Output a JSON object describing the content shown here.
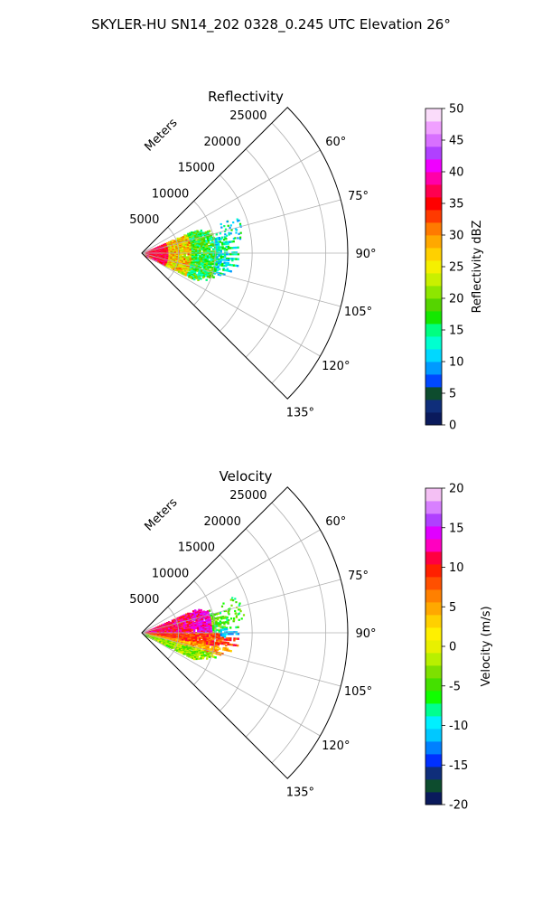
{
  "figure": {
    "suptitle": "SKYLER-HU  SN14_202  0328_0.245 UTC Elevation 26°"
  },
  "chart_data": [
    {
      "type": "heatmap",
      "projection": "polar-sector",
      "title": "Reflectivity",
      "range_label": "Meters",
      "range_ticks": [
        5000,
        10000,
        15000,
        20000,
        25000
      ],
      "range_max_m": 28000,
      "azimuth_range_deg": [
        45,
        135
      ],
      "angle_ticks": [
        "60°",
        "75°",
        "90°",
        "105°",
        "120°",
        "135°"
      ],
      "angle_tick_values": [
        60,
        75,
        90,
        105,
        120,
        135
      ],
      "grid": true,
      "colorbar": {
        "label": "Reflectivity dBZ",
        "min": 0,
        "max": 50,
        "ticks": [
          0,
          5,
          10,
          15,
          20,
          25,
          30,
          35,
          40,
          45,
          50
        ],
        "colors": [
          "#0a1a5c",
          "#0f2e7a",
          "#0d4c2e",
          "#0048ff",
          "#009aff",
          "#00d8ff",
          "#00ffd0",
          "#00ff80",
          "#14e800",
          "#55d400",
          "#8ee600",
          "#c9f000",
          "#f5f000",
          "#ffd000",
          "#ffa800",
          "#ff7a00",
          "#ff3a00",
          "#ff0000",
          "#ff0050",
          "#ff00a8",
          "#f000ff",
          "#b040ff",
          "#d870ff",
          "#f0a0ff",
          "#fadcfa"
        ]
      },
      "echo": {
        "range_extent_m": [
          0,
          15000
        ],
        "azimuth_extent_deg": [
          68,
          115
        ],
        "core": "reds and yellows (30–40 dBZ) within 5000 m",
        "outer": "greens and cyans (10–20 dBZ) out to about 14000 m"
      }
    },
    {
      "type": "heatmap",
      "projection": "polar-sector",
      "title": "Velocity",
      "range_label": "Meters",
      "range_ticks": [
        5000,
        10000,
        15000,
        20000,
        25000
      ],
      "range_max_m": 28000,
      "azimuth_range_deg": [
        45,
        135
      ],
      "angle_ticks": [
        "60°",
        "75°",
        "90°",
        "105°",
        "120°",
        "135°"
      ],
      "angle_tick_values": [
        60,
        75,
        90,
        105,
        120,
        135
      ],
      "grid": true,
      "colorbar": {
        "label": "Velocity (m/s)",
        "min": -20,
        "max": 20,
        "ticks": [
          -20,
          -15,
          -10,
          -5,
          0,
          5,
          10,
          15,
          20
        ],
        "colors": [
          "#0a1a5c",
          "#0d4c2e",
          "#0f2e7a",
          "#0030ff",
          "#0080ff",
          "#00c8ff",
          "#00f0ff",
          "#00ff90",
          "#10ff00",
          "#44e000",
          "#7ee000",
          "#b8f000",
          "#e8f000",
          "#fff000",
          "#ffd000",
          "#ffa800",
          "#ff8000",
          "#ff5000",
          "#ff2000",
          "#ff0040",
          "#ff00c0",
          "#e000ff",
          "#b040ff",
          "#d880ff",
          "#f4c0f4"
        ]
      },
      "echo": {
        "range_extent_m": [
          0,
          15000
        ],
        "azimuth_extent_deg": [
          68,
          115
        ],
        "core": "reds and magentas (10–15 m/s) in the upper sector",
        "outer": "yellows and greens (-5 to 0 m/s) in the lower sector"
      }
    }
  ]
}
